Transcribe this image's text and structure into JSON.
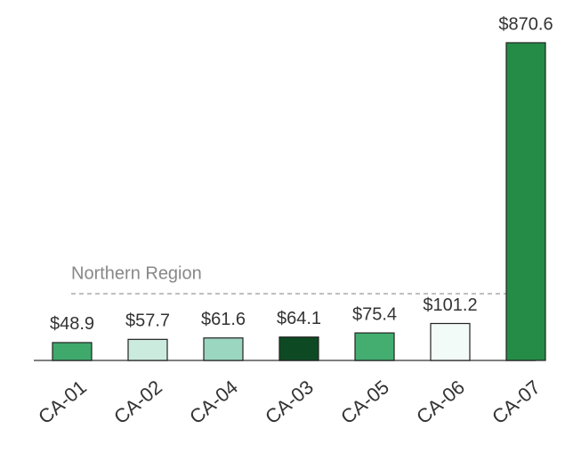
{
  "chart_data": {
    "type": "bar",
    "categories": [
      "CA-01",
      "CA-02",
      "CA-04",
      "CA-03",
      "CA-05",
      "CA-06",
      "CA-07"
    ],
    "values": [
      48.9,
      57.7,
      61.6,
      64.1,
      75.4,
      101.2,
      870.6
    ],
    "value_labels": [
      "$48.9",
      "$57.7",
      "$61.6",
      "$64.1",
      "$75.4",
      "$101.2",
      "$870.6"
    ],
    "colors": [
      "#3fa96c",
      "#cbebdf",
      "#9bd6c0",
      "#0d4a24",
      "#43ae70",
      "#f3fbf8",
      "#248c47"
    ],
    "reference_line": {
      "label": "Northern Region",
      "value": 182.8
    }
  }
}
